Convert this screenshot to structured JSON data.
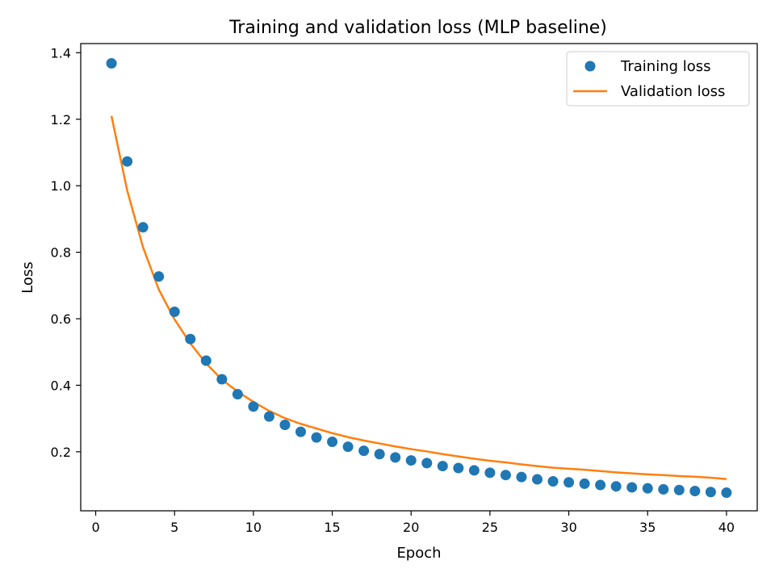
{
  "chart_data": {
    "type": "line",
    "title": "Training and validation loss (MLP baseline)",
    "xlabel": "Epoch",
    "ylabel": "Loss",
    "xlim": [
      -0.95,
      41.95
    ],
    "ylim": [
      0.0225,
      1.4275
    ],
    "xticks": [
      0,
      5,
      10,
      15,
      20,
      25,
      30,
      35,
      40
    ],
    "yticks": [
      0.2,
      0.4,
      0.6,
      0.8,
      1.0,
      1.2,
      1.4
    ],
    "x": [
      1,
      2,
      3,
      4,
      5,
      6,
      7,
      8,
      9,
      10,
      11,
      12,
      13,
      14,
      15,
      16,
      17,
      18,
      19,
      20,
      21,
      22,
      23,
      24,
      25,
      26,
      27,
      28,
      29,
      30,
      31,
      32,
      33,
      34,
      35,
      36,
      37,
      38,
      39,
      40
    ],
    "series": [
      {
        "name": "Training loss",
        "style": "markers",
        "color": "#1f77b4",
        "values": [
          1.368,
          1.073,
          0.875,
          0.727,
          0.621,
          0.539,
          0.474,
          0.418,
          0.373,
          0.336,
          0.306,
          0.281,
          0.26,
          0.243,
          0.23,
          0.215,
          0.203,
          0.193,
          0.183,
          0.174,
          0.166,
          0.157,
          0.151,
          0.144,
          0.137,
          0.13,
          0.124,
          0.117,
          0.111,
          0.108,
          0.104,
          0.1,
          0.096,
          0.093,
          0.09,
          0.087,
          0.085,
          0.082,
          0.079,
          0.077
        ]
      },
      {
        "name": "Validation loss",
        "style": "line",
        "color": "#ff7f0e",
        "values": [
          1.21,
          0.985,
          0.815,
          0.688,
          0.598,
          0.526,
          0.466,
          0.417,
          0.381,
          0.35,
          0.323,
          0.301,
          0.284,
          0.27,
          0.256,
          0.244,
          0.234,
          0.225,
          0.216,
          0.208,
          0.201,
          0.193,
          0.186,
          0.179,
          0.173,
          0.168,
          0.162,
          0.157,
          0.152,
          0.149,
          0.146,
          0.142,
          0.138,
          0.135,
          0.132,
          0.13,
          0.127,
          0.125,
          0.122,
          0.118
        ]
      }
    ],
    "grid": false,
    "legend": "top-right"
  }
}
